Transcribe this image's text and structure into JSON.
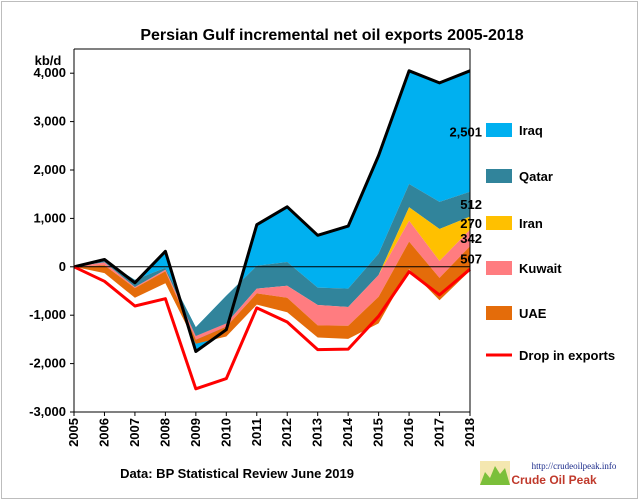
{
  "chart_data": {
    "type": "area",
    "title": "Persian Gulf incremental net oil exports 2005-2018",
    "ylabel": "kb/d",
    "xlabel": "",
    "source": "Data: BP Statistical Review June 2019",
    "x": [
      "2005",
      "2006",
      "2007",
      "2008",
      "2009",
      "2010",
      "2011",
      "2012",
      "2013",
      "2014",
      "2015",
      "2016",
      "2017",
      "2018"
    ],
    "ylim": [
      -3000,
      4500
    ],
    "yticks": [
      -3000,
      -2000,
      -1000,
      0,
      1000,
      2000,
      3000,
      4000
    ],
    "ytick_labels": [
      "-3,000",
      "-2,000",
      "-1,000",
      "0",
      "1,000",
      "2,000",
      "3,000",
      "4,000"
    ],
    "grid": false,
    "legend_position": "right",
    "series": [
      {
        "name": "Iraq",
        "color": "#00b0f0",
        "values": [
          0,
          30,
          -60,
          340,
          -500,
          -700,
          850,
          1140,
          1080,
          1290,
          2030,
          2340,
          2460,
          2501
        ]
      },
      {
        "name": "Qatar",
        "color": "#31849b",
        "values": [
          0,
          30,
          150,
          40,
          180,
          570,
          470,
          490,
          360,
          380,
          440,
          480,
          560,
          512
        ]
      },
      {
        "name": "Iran",
        "color": "#ffc000",
        "values": [
          0,
          0,
          0,
          0,
          0,
          0,
          0,
          0,
          0,
          0,
          0,
          280,
          660,
          270
        ]
      },
      {
        "name": "Kuwait",
        "color": "#ff7c80",
        "values": [
          0,
          60,
          20,
          30,
          80,
          70,
          100,
          250,
          420,
          390,
          450,
          430,
          350,
          342
        ]
      },
      {
        "name": "UAE",
        "color": "#e46c0a",
        "values": [
          0,
          160,
          200,
          250,
          80,
          200,
          230,
          300,
          250,
          270,
          550,
          570,
          460,
          507
        ]
      }
    ],
    "net_total": {
      "name": "",
      "color": "#000000",
      "values": [
        0,
        150,
        -330,
        320,
        -1750,
        -1300,
        870,
        1240,
        650,
        840,
        2300,
        4050,
        3800,
        4050
      ]
    },
    "drop_line": {
      "name": "Drop in exports",
      "color": "#ff0000",
      "values": [
        0,
        -300,
        -810,
        -660,
        -2520,
        -2310,
        -850,
        -1140,
        -1710,
        -1700,
        -1020,
        -100,
        -580,
        -50
      ]
    },
    "value_labels": [
      {
        "series": "Iraq",
        "text": "2,501"
      },
      {
        "series": "Qatar",
        "text": "512"
      },
      {
        "series": "Iran",
        "text": "270"
      },
      {
        "series": "Kuwait",
        "text": "342"
      },
      {
        "series": "UAE",
        "text": "507"
      }
    ]
  },
  "logo": {
    "url_text": "http://crudeoilpeak.info",
    "name_text": "Crude Oil Peak"
  }
}
